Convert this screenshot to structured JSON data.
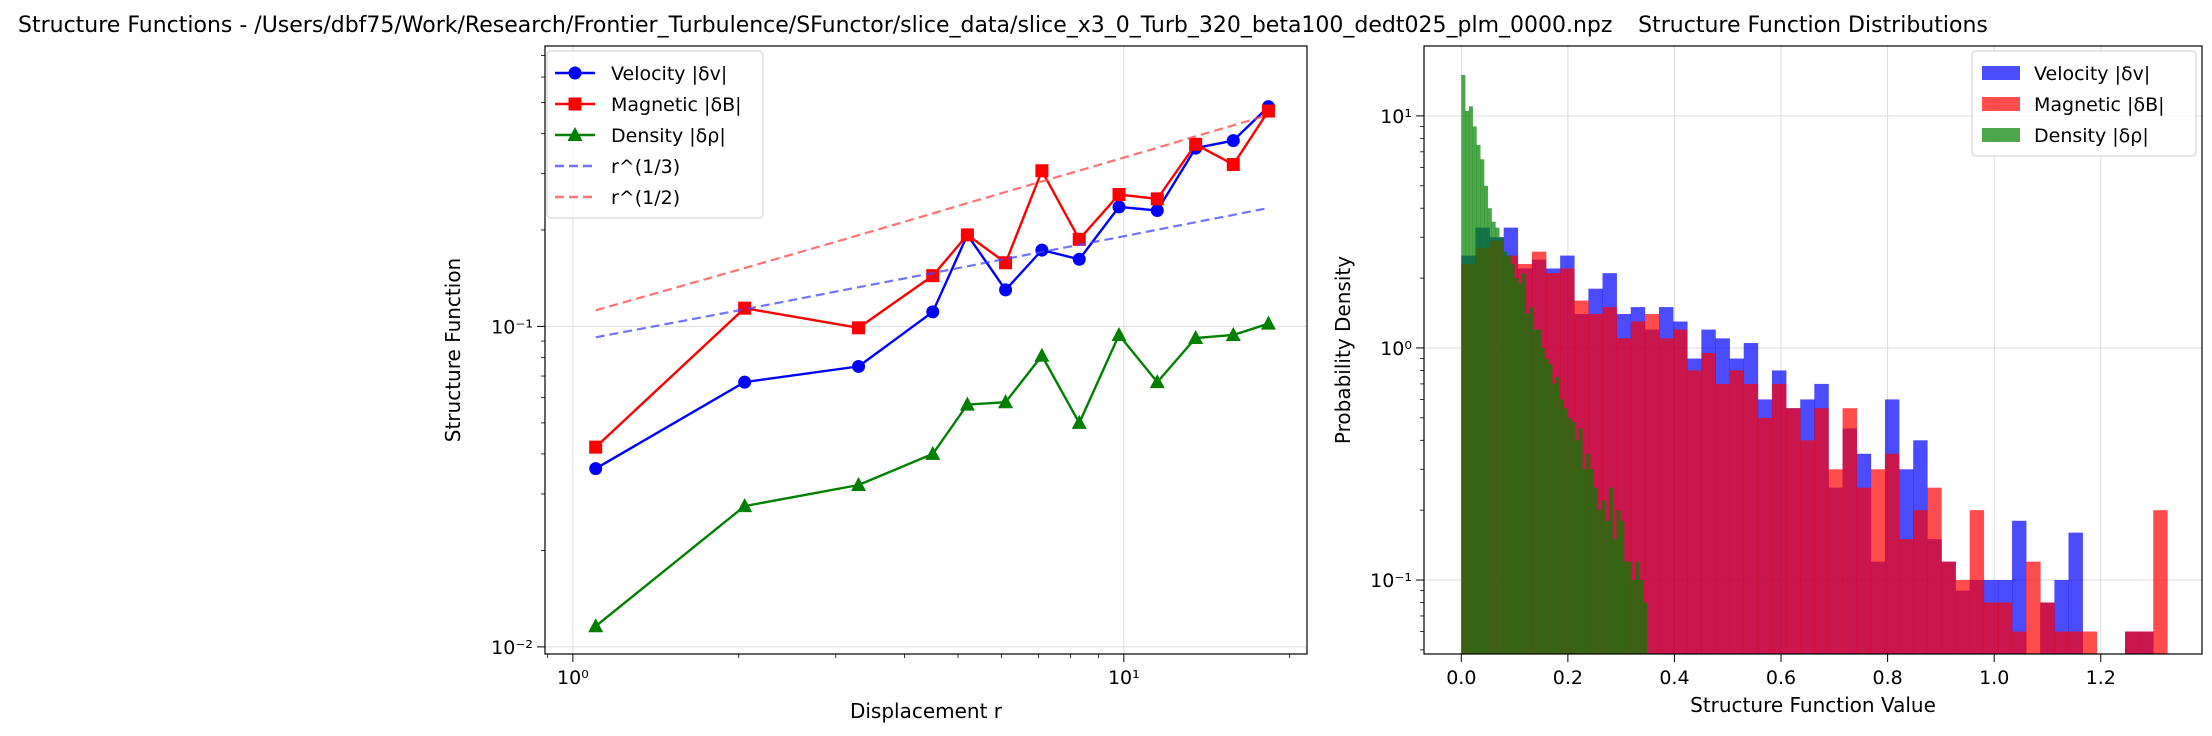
{
  "chart_data": [
    {
      "type": "line",
      "title": "Structure Functions - /Users/dbf75/Work/Research/Frontier_Turbulence/SFunctor/slice_data/slice_x3_0_Turb_320_beta100_dedt025_plm_0000.npz",
      "xlabel": "Displacement r",
      "ylabel": "Structure Function",
      "xscale": "log",
      "yscale": "log",
      "xlim": [
        0.89,
        21.5
      ],
      "ylim": [
        0.0095,
        0.75
      ],
      "xticks": [
        {
          "v": 1,
          "label": "10⁰"
        },
        {
          "v": 10,
          "label": "10¹"
        }
      ],
      "yticks": [
        {
          "v": 0.01,
          "label": "10⁻²"
        },
        {
          "v": 0.1,
          "label": "10⁻¹"
        }
      ],
      "grid": true,
      "legend_position": "upper-left",
      "x": [
        1.1,
        2.05,
        3.3,
        4.5,
        5.2,
        6.1,
        7.1,
        8.3,
        9.8,
        11.5,
        13.5,
        15.8,
        18.3
      ],
      "series": [
        {
          "name": "Velocity |δv|",
          "color": "#0000ff",
          "marker": "circle",
          "style": "solid",
          "values": [
            0.036,
            0.067,
            0.075,
            0.111,
            0.193,
            0.13,
            0.173,
            0.162,
            0.236,
            0.23,
            0.36,
            0.38,
            0.485
          ]
        },
        {
          "name": "Magnetic |δB|",
          "color": "#ff0000",
          "marker": "square",
          "style": "solid",
          "values": [
            0.042,
            0.114,
            0.099,
            0.144,
            0.193,
            0.158,
            0.306,
            0.187,
            0.258,
            0.25,
            0.37,
            0.32,
            0.47
          ]
        },
        {
          "name": "Density |δρ|",
          "color": "#008000",
          "marker": "triangle",
          "style": "solid",
          "values": [
            0.0116,
            0.0275,
            0.032,
            0.04,
            0.057,
            0.058,
            0.081,
            0.05,
            0.094,
            0.067,
            0.092,
            0.094,
            0.102
          ]
        },
        {
          "name": "r^(1/3)",
          "color": "#4444ff",
          "marker": "none",
          "style": "dashed",
          "values": [
            0.0925,
            0.1131,
            0.1325,
            0.1468,
            0.154,
            0.1624,
            0.1708,
            0.1798,
            0.1899,
            0.2003,
            0.2115,
            0.2228,
            0.2341
          ]
        },
        {
          "name": "r^(1/2)",
          "color": "#ff4444",
          "marker": "none",
          "style": "dashed",
          "values": [
            0.1123,
            0.152,
            0.1926,
            0.2253,
            0.2425,
            0.2626,
            0.2834,
            0.3064,
            0.333,
            0.361,
            0.3919,
            0.4241,
            0.4571
          ]
        }
      ]
    },
    {
      "type": "histogram",
      "title": "Structure Function Distributions",
      "xlabel": "Structure Function Value",
      "ylabel": "Probability Density",
      "yscale": "log",
      "xlim": [
        -0.07,
        1.39
      ],
      "ylim": [
        0.048,
        20
      ],
      "xticks": [
        {
          "v": 0.0,
          "label": "0.0"
        },
        {
          "v": 0.2,
          "label": "0.2"
        },
        {
          "v": 0.4,
          "label": "0.4"
        },
        {
          "v": 0.6,
          "label": "0.6"
        },
        {
          "v": 0.8,
          "label": "0.8"
        },
        {
          "v": 1.0,
          "label": "1.0"
        },
        {
          "v": 1.2,
          "label": "1.2"
        }
      ],
      "yticks": [
        {
          "v": 0.1,
          "label": "10⁻¹"
        },
        {
          "v": 1,
          "label": "10⁰"
        },
        {
          "v": 10,
          "label": "10¹"
        }
      ],
      "grid": true,
      "legend_position": "upper-right",
      "series": [
        {
          "name": "Velocity |δv|",
          "color": "#0000ff",
          "opacity": 0.7,
          "bin_width": 0.0265,
          "bin_start": 0.0,
          "densities": [
            2.5,
            3.3,
            3.0,
            3.3,
            2.2,
            2.4,
            2.2,
            2.5,
            1.4,
            1.8,
            2.1,
            1.4,
            1.5,
            1.2,
            1.5,
            1.3,
            0.9,
            1.2,
            1.1,
            0.9,
            1.05,
            0.6,
            0.8,
            0.55,
            0.6,
            0.7,
            0.25,
            0.45,
            0.35,
            0.12,
            0.6,
            0.3,
            0.4,
            0.15,
            0.12,
            0.09,
            0.1,
            0.1,
            0.1,
            0.18,
            0.0,
            0.08,
            0.1,
            0.16,
            0.0,
            0.0,
            0.0,
            0.06,
            0.06,
            0.0
          ]
        },
        {
          "name": "Magnetic |δB|",
          "color": "#ff0000",
          "opacity": 0.7,
          "bin_width": 0.0265,
          "bin_start": 0.0,
          "densities": [
            2.3,
            2.7,
            2.9,
            2.5,
            2.3,
            2.6,
            2.1,
            2.2,
            1.6,
            1.4,
            1.5,
            1.1,
            1.3,
            1.4,
            1.1,
            1.2,
            0.8,
            0.95,
            0.7,
            0.8,
            0.7,
            0.5,
            0.7,
            0.55,
            0.4,
            0.55,
            0.3,
            0.55,
            0.25,
            0.3,
            0.35,
            0.15,
            0.2,
            0.25,
            0.12,
            0.1,
            0.2,
            0.08,
            0.08,
            0.06,
            0.12,
            0.08,
            0.06,
            0.06,
            0.06,
            0.0,
            0.0,
            0.06,
            0.06,
            0.2
          ]
        },
        {
          "name": "Density |δρ|",
          "color": "#008000",
          "opacity": 0.7,
          "bin_width": 0.0071,
          "bin_start": 0.0,
          "densities": [
            15.0,
            10.5,
            11.0,
            9.0,
            7.5,
            6.5,
            5.0,
            4.0,
            3.5,
            3.3,
            3.0,
            2.6,
            2.5,
            2.3,
            2.0,
            1.9,
            2.1,
            1.4,
            1.5,
            1.2,
            1.2,
            1.0,
            0.9,
            0.85,
            0.7,
            0.75,
            0.6,
            0.55,
            0.5,
            0.48,
            0.4,
            0.45,
            0.3,
            0.35,
            0.3,
            0.25,
            0.2,
            0.22,
            0.18,
            0.25,
            0.15,
            0.2,
            0.18,
            0.12,
            0.12,
            0.1,
            0.12,
            0.1,
            0.08
          ]
        }
      ]
    }
  ]
}
